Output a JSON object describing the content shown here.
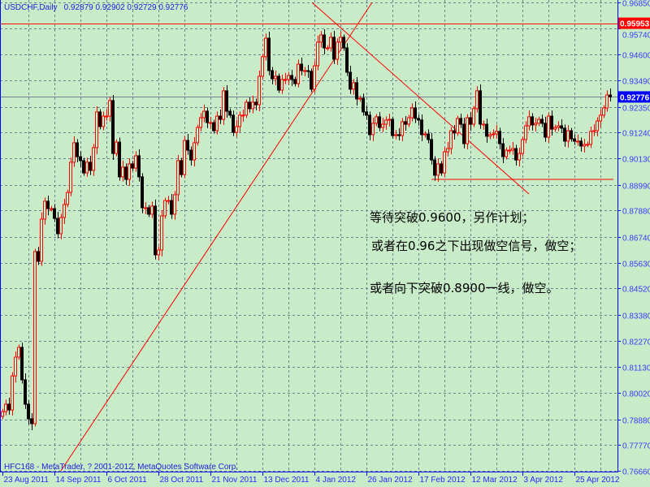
{
  "header": {
    "symbol": "USDCHF,Daily",
    "ohlc": "0.92879 0.92902 0.92729 0.92776"
  },
  "footer": "HFC168 - MetaTrader, ? 2001-2012, MetaQuotes Software Corp.",
  "annotations": [
    "等待突破0.9600，另作计划；",
    "或者在0.96之下出现做空信号，做空；",
    "或者向下突破0.8900一线，做空。"
  ],
  "colors": {
    "background": "#c8ecc8",
    "axis": "#0000ff",
    "bull": "#ff0000",
    "bear": "#000000",
    "grid": "#708090",
    "resistance": "#ff0000",
    "current": "#0000ff"
  },
  "chart_data": {
    "type": "candlestick",
    "symbol": "USDCHF",
    "timeframe": "Daily",
    "ylim": [
      0.7666,
      0.9685
    ],
    "grid": true,
    "y_ticks": [
      "0.96850",
      "0.95740",
      "0.94600",
      "0.93490",
      "0.92350",
      "0.91240",
      "0.90130",
      "0.88990",
      "0.87880",
      "0.86740",
      "0.85630",
      "0.84520",
      "0.83380",
      "0.82270",
      "0.81130",
      "0.80020",
      "0.78880",
      "0.77770",
      "0.76660"
    ],
    "x_ticks": [
      "23 Aug 2011",
      "14 Sep 2011",
      "6 Oct 2011",
      "28 Oct 2011",
      "21 Nov 2011",
      "13 Dec 2011",
      "4 Jan 2012",
      "26 Jan 2012",
      "17 Feb 2012",
      "12 Mar 2012",
      "3 Apr 2012",
      "25 Apr 2012"
    ],
    "bars_per_x_tick": 16,
    "first_open": 0.79,
    "close": [
      0.7921,
      0.7953,
      0.7928,
      0.8075,
      0.8156,
      0.8198,
      0.8058,
      0.7953,
      0.789,
      0.7869,
      0.8611,
      0.8569,
      0.8751,
      0.8828,
      0.8796,
      0.8796,
      0.8754,
      0.8688,
      0.8758,
      0.8814,
      0.8866,
      0.8996,
      0.908,
      0.902,
      0.9003,
      0.895,
      0.8996,
      0.8961,
      0.9059,
      0.9213,
      0.915,
      0.9195,
      0.9195,
      0.9262,
      0.9034,
      0.9083,
      0.8933,
      0.8975,
      0.8922,
      0.8989,
      0.8971,
      0.9024,
      0.8933,
      0.88,
      0.88,
      0.8772,
      0.8807,
      0.8597,
      0.8618,
      0.8765,
      0.8831,
      0.8831,
      0.8772,
      0.8856,
      0.9003,
      0.8943,
      0.909,
      0.9048,
      0.9006,
      0.908,
      0.9146,
      0.9188,
      0.9216,
      0.9167,
      0.9167,
      0.9132,
      0.9195,
      0.9181,
      0.9304,
      0.9216,
      0.9199,
      0.9125,
      0.915,
      0.9199,
      0.9199,
      0.9255,
      0.9227,
      0.9255,
      0.9244,
      0.9367,
      0.9451,
      0.9531,
      0.9391,
      0.9356,
      0.9367,
      0.9307,
      0.9353,
      0.9353,
      0.937,
      0.9353,
      0.9335,
      0.9419,
      0.9391,
      0.9391,
      0.9388,
      0.9311,
      0.9412,
      0.9514,
      0.9545,
      0.9489,
      0.9489,
      0.9535,
      0.944,
      0.9514,
      0.9535,
      0.9489,
      0.9384,
      0.9311,
      0.9339,
      0.9269,
      0.9272,
      0.9213,
      0.9199,
      0.9115,
      0.9164,
      0.9192,
      0.9146,
      0.916,
      0.9178,
      0.9181,
      0.9111,
      0.9115,
      0.9111,
      0.9171,
      0.916,
      0.9188,
      0.923,
      0.9185,
      0.9178,
      0.9115,
      0.9118,
      0.9094,
      0.9006,
      0.894,
      0.8989,
      0.895,
      0.9041,
      0.9055,
      0.9132,
      0.9122,
      0.9185,
      0.916,
      0.9076,
      0.9188,
      0.916,
      0.9227,
      0.9304,
      0.916,
      0.916,
      0.9108,
      0.9115,
      0.9118,
      0.9129,
      0.9076,
      0.902,
      0.9048,
      0.9048,
      0.9055,
      0.9006,
      0.9034,
      0.9094,
      0.9153,
      0.9192,
      0.9157,
      0.9164,
      0.9181,
      0.9164,
      0.9104,
      0.9195,
      0.9139,
      0.9146,
      0.9153,
      0.9143,
      0.9087,
      0.9132,
      0.9097,
      0.9087,
      0.9087,
      0.9066,
      0.9073,
      0.9073,
      0.9129,
      0.9132,
      0.9174,
      0.9199,
      0.923,
      0.9286,
      0.9278
    ],
    "lines": [
      {
        "kind": "horizontal",
        "price": 0.95953,
        "label": "0.95953",
        "color": "#ff0000"
      },
      {
        "kind": "horizontal",
        "price": 0.92776,
        "label": "0.92776",
        "color": "#708090"
      },
      {
        "kind": "segment",
        "from_bar": 132,
        "to_bar": 188,
        "from_price": 0.8922,
        "to_price": 0.8922,
        "color": "#ff0000"
      },
      {
        "kind": "trend",
        "from_bar": 18,
        "from_price": 0.7666,
        "to_bar": 113.75,
        "to_price": 0.9685,
        "color": "#ff0000"
      },
      {
        "kind": "trend",
        "from_bar": 95.25,
        "from_price": 0.9685,
        "to_bar": 162,
        "to_price": 0.8859,
        "color": "#ff0000"
      }
    ]
  }
}
